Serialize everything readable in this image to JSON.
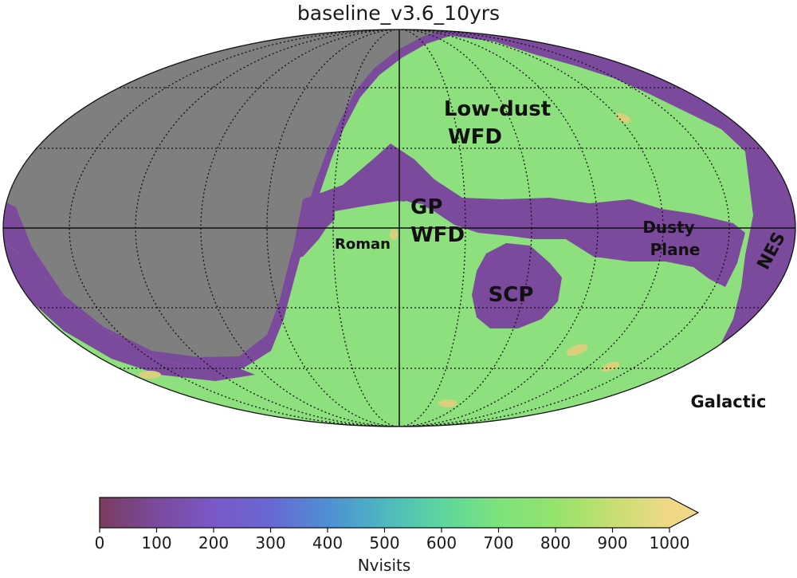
{
  "title": "baseline_v3.6_10yrs",
  "coordinate_system_label": "Galactic",
  "regions": {
    "low_dust_wfd": [
      "Low-dust",
      "WFD"
    ],
    "gp_wfd": [
      "GP",
      "WFD"
    ],
    "roman": "Roman",
    "dusty_plane": [
      "Dusty",
      "Plane"
    ],
    "scp": "SCP",
    "nes": "NES"
  },
  "colorbar": {
    "label": "Nvisits",
    "min": 0,
    "max": 1000,
    "extend": "max",
    "ticks": [
      "0",
      "100",
      "200",
      "300",
      "400",
      "500",
      "600",
      "700",
      "800",
      "900",
      "1000"
    ],
    "colormap": [
      "#7a3c5e",
      "#7b4a9c",
      "#7a58c8",
      "#5f7fd6",
      "#4da8c8",
      "#5cd0a0",
      "#7de37c",
      "#9ee36a",
      "#d8d07a",
      "#f0d888"
    ]
  },
  "map_colors": {
    "unobserved": "#7f7f7f",
    "low_visits": "#7b4a9c",
    "wfd": "#8ee07e"
  }
}
